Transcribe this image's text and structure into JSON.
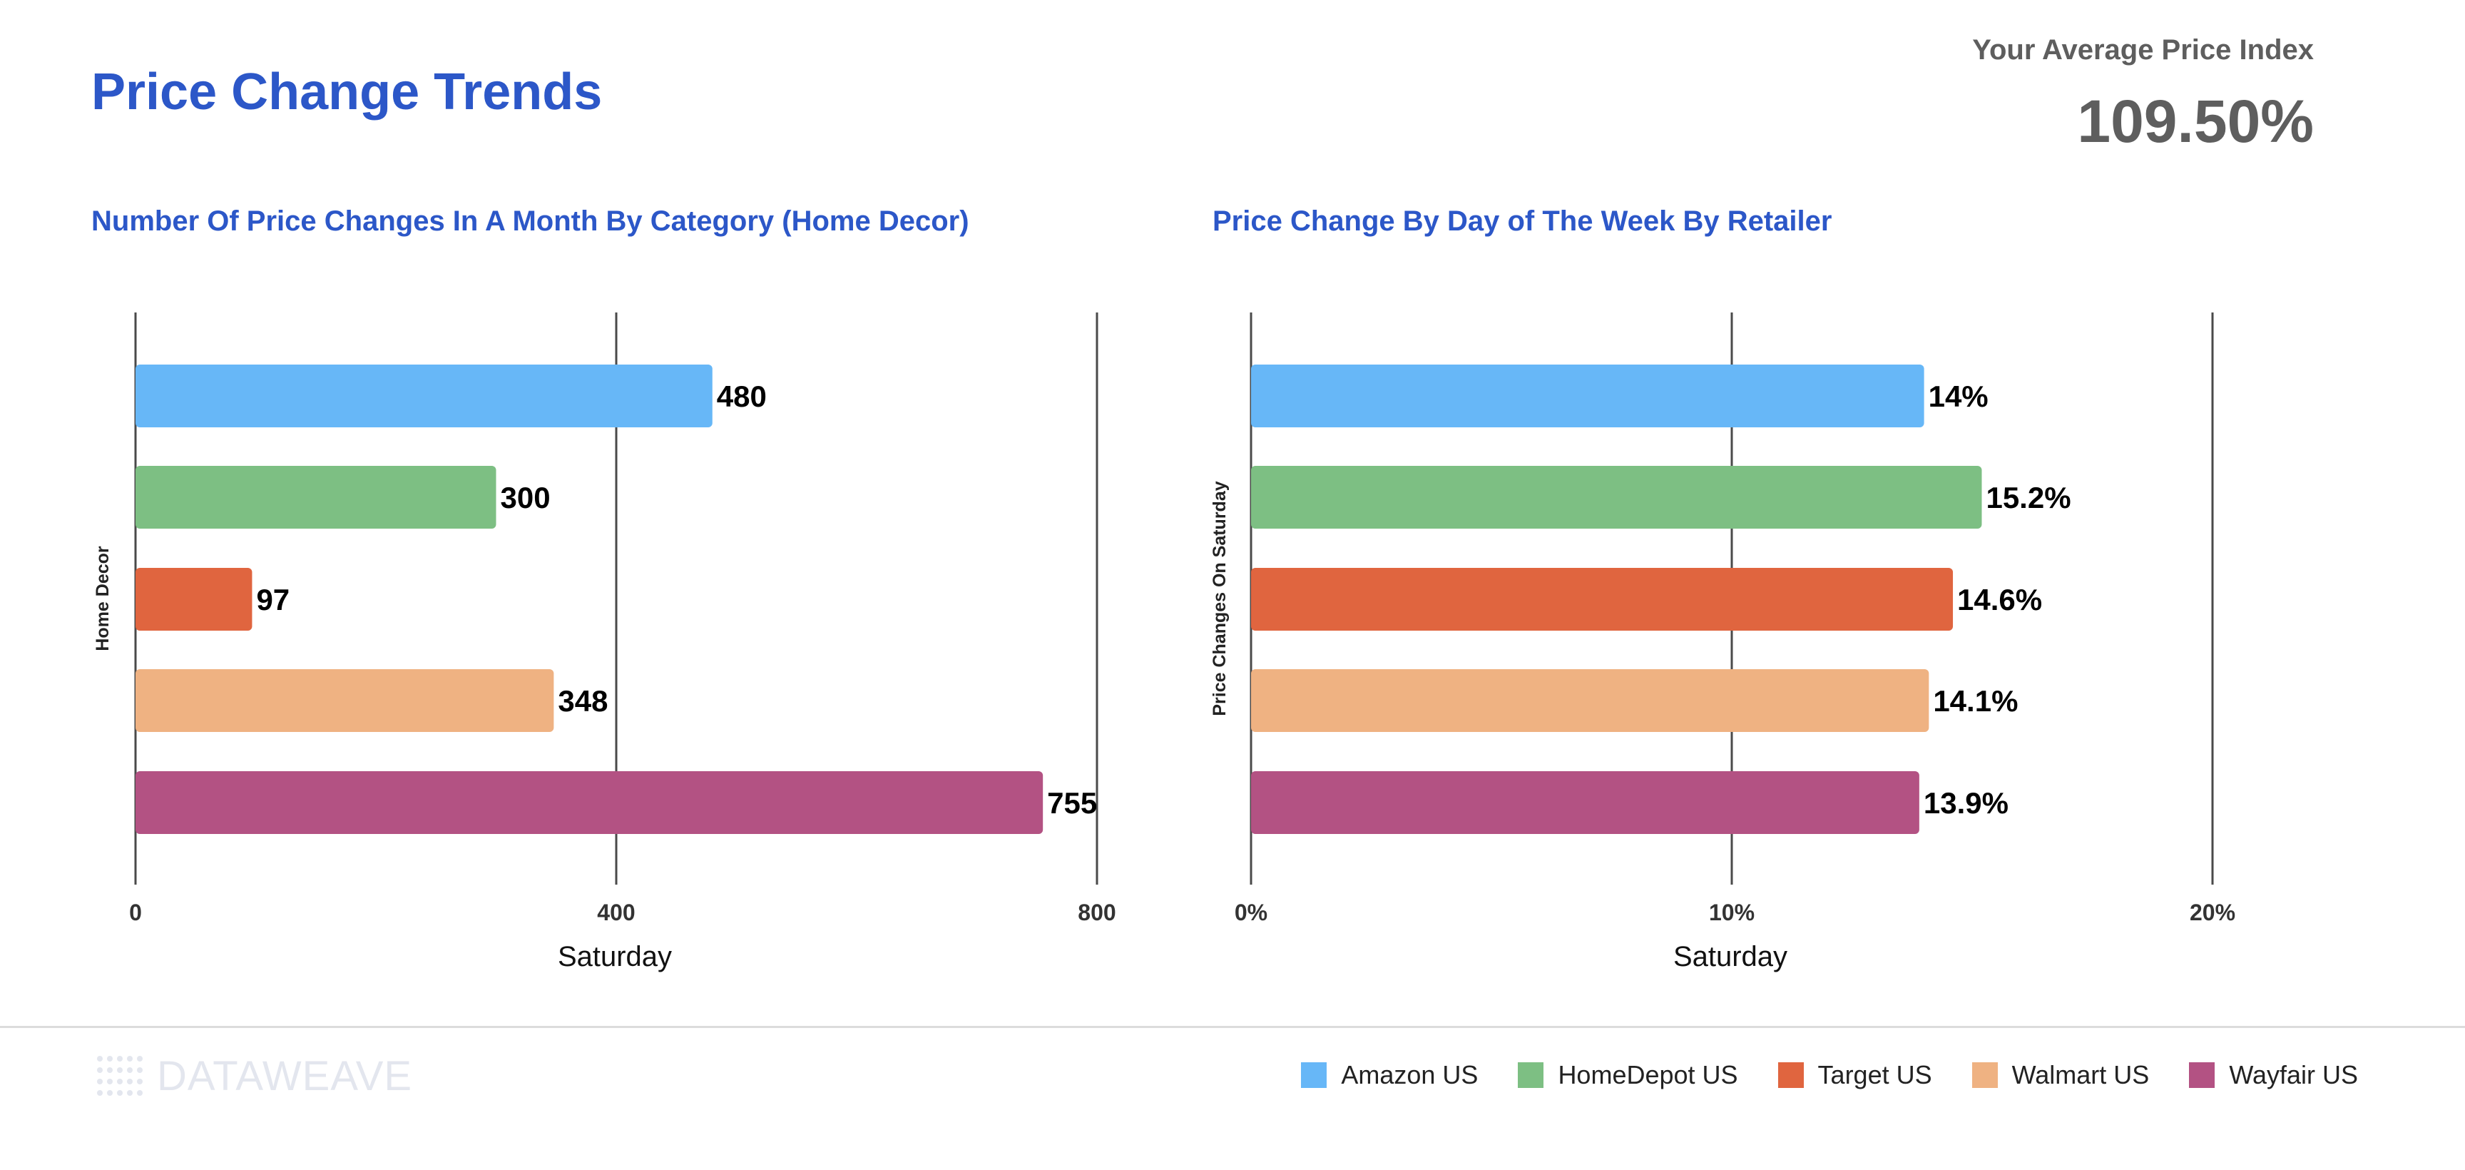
{
  "page": {
    "title": "Price Change Trends",
    "kpi_label": "Your Average Price Index",
    "kpi_value": "109.50%"
  },
  "colors": {
    "title": "#2c57c8",
    "Amazon US": "#67b7f7",
    "HomeDepot US": "#7dbf83",
    "Target US": "#e0653f",
    "Walmart US": "#efb282",
    "Wayfair US": "#b35283"
  },
  "chart_data": [
    {
      "type": "bar",
      "orientation": "horizontal",
      "title": "Number Of Price Changes In A Month By Category (Home Decor)",
      "xlabel": "Saturday",
      "ylabel": "Home Decor",
      "xlim": [
        0,
        800
      ],
      "xticks": [
        "0",
        "400",
        "800"
      ],
      "grid": true,
      "series": [
        {
          "name": "Amazon US",
          "values": [
            480
          ],
          "label": "480"
        },
        {
          "name": "HomeDepot US",
          "values": [
            300
          ],
          "label": "300"
        },
        {
          "name": "Target US",
          "values": [
            97
          ],
          "label": "97"
        },
        {
          "name": "Walmart US",
          "values": [
            348
          ],
          "label": "348"
        },
        {
          "name": "Wayfair US",
          "values": [
            755
          ],
          "label": "755"
        }
      ]
    },
    {
      "type": "bar",
      "orientation": "horizontal",
      "title": "Price Change By Day of The Week By Retailer",
      "xlabel": "Saturday",
      "ylabel": "Price Changes On Saturday",
      "xlim": [
        0,
        20
      ],
      "xticks": [
        "0%",
        "10%",
        "20%"
      ],
      "grid": true,
      "series": [
        {
          "name": "Amazon US",
          "values": [
            14
          ],
          "label": "14%"
        },
        {
          "name": "HomeDepot US",
          "values": [
            15.2
          ],
          "label": "15.2%"
        },
        {
          "name": "Target US",
          "values": [
            14.6
          ],
          "label": "14.6%"
        },
        {
          "name": "Walmart US",
          "values": [
            14.1
          ],
          "label": "14.1%"
        },
        {
          "name": "Wayfair US",
          "values": [
            13.9
          ],
          "label": "13.9%"
        }
      ]
    }
  ],
  "legend": [
    "Amazon US",
    "HomeDepot US",
    "Target US",
    "Walmart US",
    "Wayfair US"
  ],
  "footer": {
    "brand": "DATAWEAVE"
  }
}
